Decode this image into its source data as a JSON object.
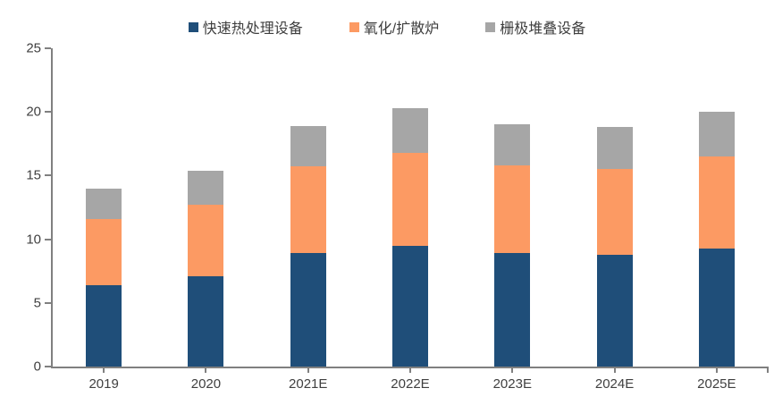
{
  "chart_data": {
    "type": "bar",
    "stacked": true,
    "title": "",
    "xlabel": "",
    "ylabel": "",
    "categories": [
      "2019",
      "2020",
      "2021E",
      "2022E",
      "2023E",
      "2024E",
      "2025E"
    ],
    "series": [
      {
        "name": "快速热处理设备",
        "color": "#1F4E79",
        "values": [
          6.4,
          7.1,
          8.9,
          9.5,
          8.9,
          8.8,
          9.3
        ]
      },
      {
        "name": "氧化/扩散炉",
        "color": "#FC9A63",
        "values": [
          5.2,
          5.6,
          6.8,
          7.3,
          6.9,
          6.7,
          7.2
        ]
      },
      {
        "name": "栅极堆叠设备",
        "color": "#A6A6A6",
        "values": [
          2.4,
          2.7,
          3.2,
          3.5,
          3.2,
          3.3,
          3.5
        ]
      }
    ],
    "totals": [
      14.0,
      15.4,
      18.9,
      20.3,
      19.0,
      18.8,
      20.0
    ],
    "ylim": [
      0,
      25
    ],
    "yticks": [
      0,
      5,
      10,
      15,
      20,
      25
    ],
    "legend_position": "top-center",
    "grid": false,
    "axis_color": "#808080",
    "label_color": "#404040"
  }
}
